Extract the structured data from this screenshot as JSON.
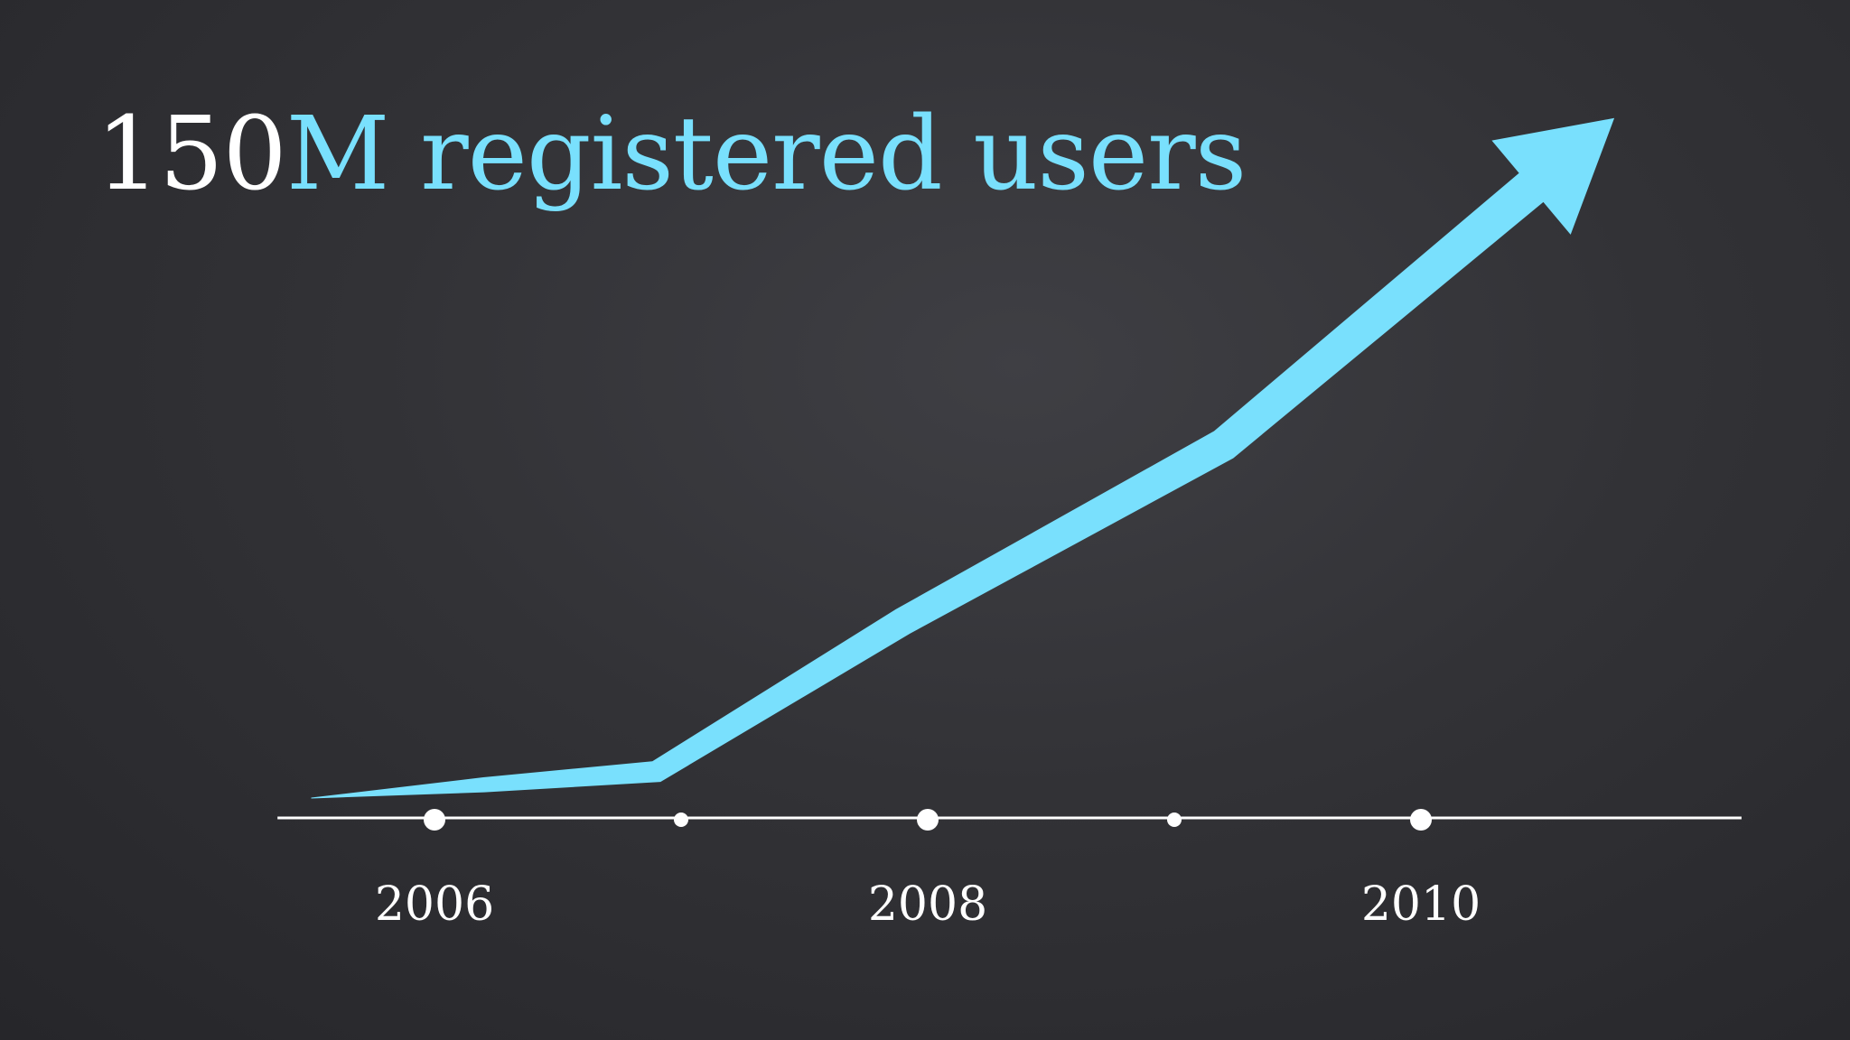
{
  "title": {
    "number": "150",
    "rest": "M registered users"
  },
  "colors": {
    "background": "#323236",
    "accent": "#79e0fd",
    "axis": "#ffffff",
    "text": "#ffffff"
  },
  "chart_data": {
    "type": "line",
    "title": "150M registered users",
    "xlabel": "",
    "ylabel": "",
    "xlim": [
      2005.4,
      2011.3
    ],
    "ylim": [
      0,
      150
    ],
    "x_ticks_major": [
      2006,
      2008,
      2010
    ],
    "x_ticks_minor": [
      2007,
      2009
    ],
    "x_tick_labels": [
      "2006",
      "2008",
      "2010"
    ],
    "series": [
      {
        "values": [
          {
            "x": 2005.5,
            "y": 0
          },
          {
            "x": 2006.2,
            "y": 3
          },
          {
            "x": 2006.9,
            "y": 6
          },
          {
            "x": 2007.9,
            "y": 40
          },
          {
            "x": 2009.2,
            "y": 80
          },
          {
            "x": 2010.7,
            "y": 150
          }
        ]
      }
    ],
    "end_marker": "arrow",
    "grid": false,
    "legend": "none"
  }
}
